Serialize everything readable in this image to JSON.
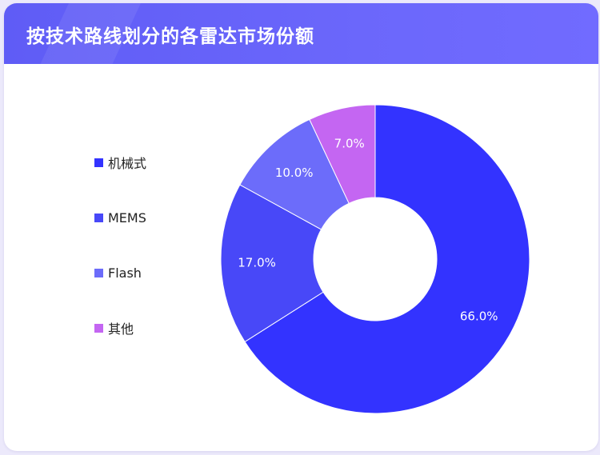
{
  "header": {
    "title": "按技术路线划分的各雷达市场份额"
  },
  "chart_data": {
    "type": "pie",
    "variant": "donut",
    "title": "按技术路线划分的各雷达市场份额",
    "legend_position": "left",
    "start_angle": "12 o'clock, clockwise",
    "series": [
      {
        "name": "机械式",
        "value": 66.0,
        "label": "66.0%",
        "color": "#3333ff"
      },
      {
        "name": "MEMS",
        "value": 17.0,
        "label": "17.0%",
        "color": "#4848f8"
      },
      {
        "name": "Flash",
        "value": 10.0,
        "label": "10.0%",
        "color": "#6c6cfa"
      },
      {
        "name": "其他",
        "value": 7.0,
        "label": "7.0%",
        "color": "#c466f2"
      }
    ]
  }
}
